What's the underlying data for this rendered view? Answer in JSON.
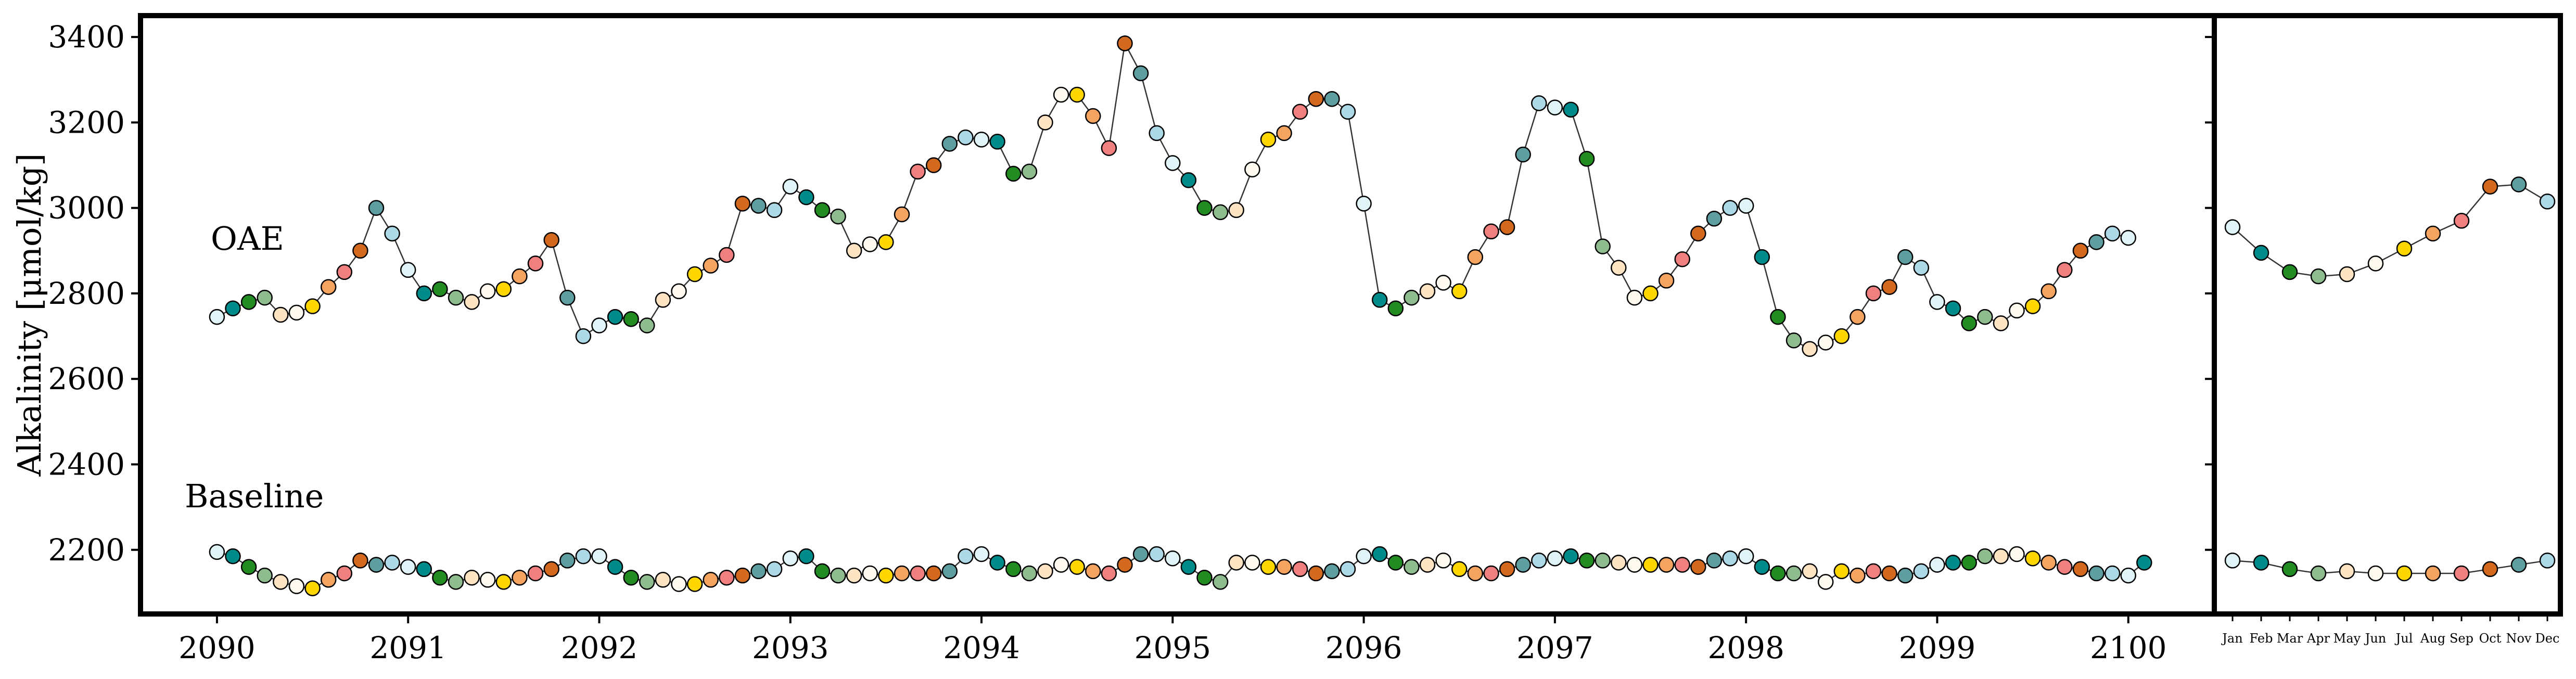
{
  "chart_data": [
    {
      "type": "line",
      "panel": "annual",
      "ylabel": "Alkalinity [μmol/kg]",
      "ylim": [
        2050,
        3450
      ],
      "xlim": [
        2089.6,
        2100.45
      ],
      "xticks": [
        "2090",
        "2091",
        "2092",
        "2093",
        "2094",
        "2095",
        "2096",
        "2097",
        "2098",
        "2099",
        "2100"
      ],
      "yticks": [
        "2200",
        "2400",
        "2600",
        "2800",
        "3000",
        "3200",
        "3400"
      ],
      "start_year": 2090,
      "months_per_year": 12,
      "month_colors": [
        "#e0f4f8",
        "#008b8b",
        "#228b22",
        "#8fbc8f",
        "#ffe4c4",
        "#fffaf0",
        "#ffd700",
        "#f4a460",
        "#f08080",
        "#d2691e",
        "#5f9ea0",
        "#add8e6"
      ],
      "series": [
        {
          "name": "OAE",
          "values": [
            2745,
            2765,
            2780,
            2790,
            2750,
            2755,
            2770,
            2815,
            2850,
            2900,
            3000,
            2940,
            2855,
            2800,
            2810,
            2790,
            2780,
            2805,
            2810,
            2840,
            2870,
            2925,
            2790,
            2700,
            2725,
            2745,
            2740,
            2725,
            2785,
            2805,
            2845,
            2865,
            2890,
            3010,
            3005,
            2995,
            3050,
            3025,
            2995,
            2980,
            2900,
            2915,
            2920,
            2985,
            3085,
            3100,
            3150,
            3165,
            3160,
            3155,
            3080,
            3085,
            3200,
            3265,
            3265,
            3215,
            3140,
            3385,
            3315,
            3175,
            3105,
            3065,
            3000,
            2990,
            2995,
            3090,
            3160,
            3175,
            3225,
            3255,
            3255,
            3225,
            3010,
            2785,
            2765,
            2790,
            2805,
            2825,
            2805,
            2885,
            2945,
            2955,
            3125,
            3245,
            3235,
            3230,
            3115,
            2910,
            2860,
            2790,
            2800,
            2830,
            2880,
            2940,
            2975,
            3000,
            3005,
            2885,
            2745,
            2690,
            2670,
            2685,
            2700,
            2745,
            2800,
            2815,
            2885,
            2860,
            2780,
            2765,
            2730,
            2745,
            2730,
            2760,
            2770,
            2805,
            2855,
            2900,
            2920,
            2940,
            2930
          ]
        },
        {
          "name": "Baseline",
          "values": [
            2195,
            2185,
            2160,
            2140,
            2125,
            2115,
            2110,
            2130,
            2145,
            2175,
            2165,
            2170,
            2160,
            2155,
            2135,
            2125,
            2135,
            2130,
            2125,
            2135,
            2145,
            2155,
            2175,
            2185,
            2185,
            2160,
            2135,
            2125,
            2130,
            2120,
            2120,
            2130,
            2135,
            2140,
            2150,
            2155,
            2180,
            2185,
            2150,
            2140,
            2140,
            2145,
            2140,
            2145,
            2145,
            2145,
            2150,
            2185,
            2190,
            2170,
            2155,
            2145,
            2150,
            2165,
            2160,
            2150,
            2145,
            2165,
            2190,
            2190,
            2180,
            2160,
            2135,
            2125,
            2170,
            2170,
            2160,
            2160,
            2155,
            2145,
            2150,
            2155,
            2185,
            2190,
            2170,
            2160,
            2165,
            2175,
            2155,
            2145,
            2145,
            2155,
            2165,
            2175,
            2180,
            2185,
            2175,
            2175,
            2170,
            2165,
            2165,
            2165,
            2165,
            2160,
            2175,
            2180,
            2185,
            2160,
            2145,
            2145,
            2150,
            2125,
            2150,
            2140,
            2150,
            2145,
            2140,
            2150,
            2165,
            2170,
            2170,
            2185,
            2185,
            2190,
            2180,
            2170,
            2160,
            2155,
            2145,
            2145,
            2140,
            2170
          ]
        }
      ]
    },
    {
      "type": "line",
      "panel": "climatology",
      "categories": [
        "Jan",
        "Feb",
        "Mar",
        "Apr",
        "May",
        "Jun",
        "Jul",
        "Aug",
        "Sep",
        "Oct",
        "Nov",
        "Dec"
      ],
      "ylim": [
        2050,
        3450
      ],
      "series": [
        {
          "name": "OAE",
          "values": [
            2955,
            2895,
            2850,
            2840,
            2845,
            2870,
            2905,
            2940,
            2970,
            3050,
            3055,
            3015
          ]
        },
        {
          "name": "Baseline",
          "values": [
            2175,
            2170,
            2155,
            2145,
            2150,
            2145,
            2145,
            2145,
            2145,
            2155,
            2165,
            2175
          ]
        }
      ]
    }
  ]
}
